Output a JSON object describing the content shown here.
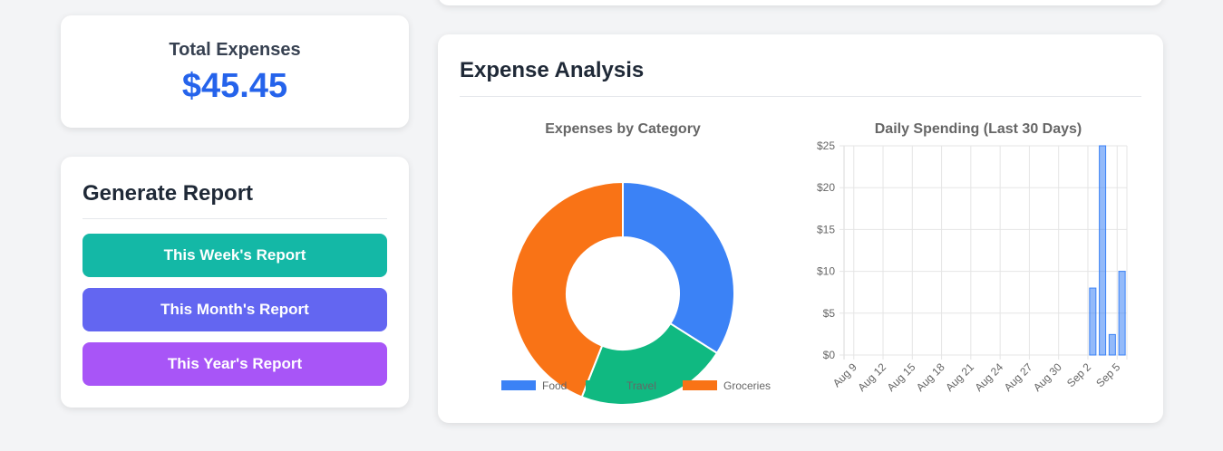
{
  "total": {
    "label": "Total Expenses",
    "value": "$45.45"
  },
  "report": {
    "title": "Generate Report",
    "buttons": [
      {
        "label": "This Week's Report",
        "color": "#14b8a6"
      },
      {
        "label": "This Month's Report",
        "color": "#6366f1"
      },
      {
        "label": "This Year's Report",
        "color": "#a855f7"
      }
    ]
  },
  "analysis": {
    "title": "Expense Analysis"
  },
  "chart_data": [
    {
      "type": "pie",
      "title": "Expenses by Category",
      "categories": [
        "Food",
        "Travel",
        "Groceries"
      ],
      "values": [
        15.45,
        10,
        20
      ],
      "colors": [
        "#3b82f6",
        "#10b981",
        "#f97316"
      ],
      "donut": true,
      "legend": "bottom"
    },
    {
      "type": "bar",
      "title": "Daily Spending (Last 30 Days)",
      "x": [
        "Aug 8",
        "Aug 9",
        "Aug 10",
        "Aug 11",
        "Aug 12",
        "Aug 13",
        "Aug 14",
        "Aug 15",
        "Aug 16",
        "Aug 17",
        "Aug 18",
        "Aug 19",
        "Aug 20",
        "Aug 21",
        "Aug 22",
        "Aug 23",
        "Aug 24",
        "Aug 25",
        "Aug 26",
        "Aug 27",
        "Aug 28",
        "Aug 29",
        "Aug 30",
        "Aug 31",
        "Sep 1",
        "Sep 2",
        "Sep 3",
        "Sep 4",
        "Sep 5",
        "Sep 6"
      ],
      "values": [
        0,
        0,
        0,
        0,
        0,
        0,
        0,
        0,
        0,
        0,
        0,
        0,
        0,
        0,
        0,
        0,
        0,
        0,
        0,
        0,
        0,
        0,
        0,
        0,
        0,
        8,
        25,
        2.45,
        10,
        0
      ],
      "x_tick_labels": [
        "Aug 9",
        "Aug 12",
        "Aug 15",
        "Aug 18",
        "Aug 21",
        "Aug 24",
        "Aug 27",
        "Aug 30",
        "Sep 2",
        "Sep 5"
      ],
      "y_tick_labels": [
        "$0",
        "$5",
        "$10",
        "$15",
        "$20",
        "$25"
      ],
      "ylim": [
        0,
        25
      ],
      "grid": true,
      "bar_fill": "rgba(59,130,246,0.55)",
      "bar_stroke": "#3b82f6"
    }
  ]
}
